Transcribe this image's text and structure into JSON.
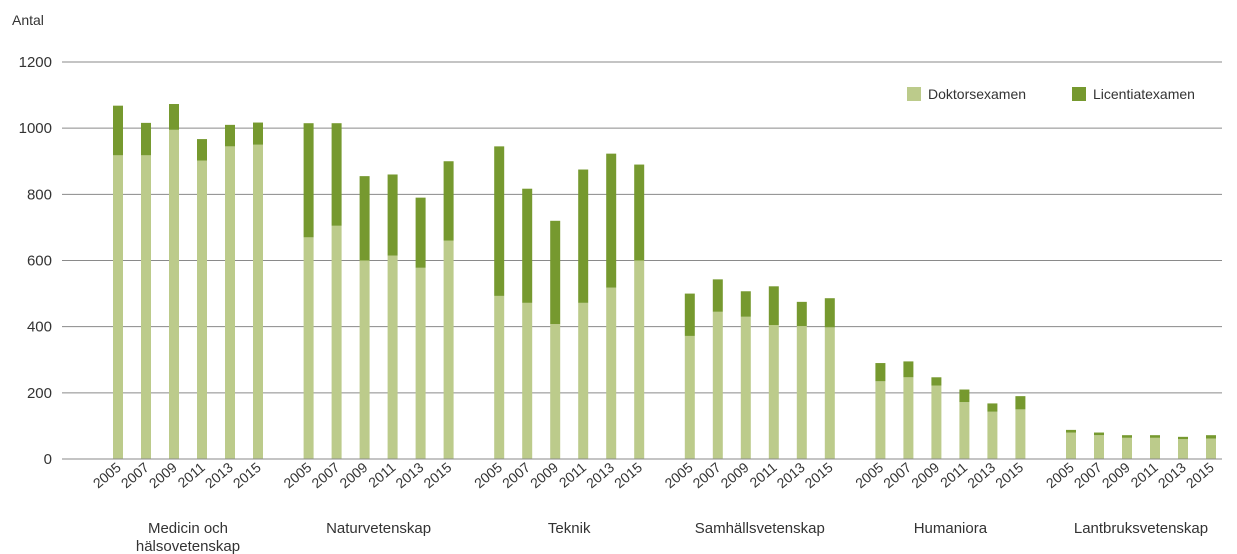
{
  "chart_data": {
    "type": "bar",
    "stacked": true,
    "ylabel": "Antal",
    "ylim": [
      0,
      1200
    ],
    "yticks": [
      0,
      200,
      400,
      600,
      800,
      1000,
      1200
    ],
    "grid": true,
    "legend_position": "top-right",
    "years": [
      "2005",
      "2007",
      "2009",
      "2011",
      "2013",
      "2015"
    ],
    "groups": [
      {
        "label_lines": [
          "Medicin och",
          "hälsovetenskap"
        ],
        "doktorsexamen": [
          918,
          918,
          995,
          902,
          945,
          950
        ],
        "licentiatexamen": [
          150,
          98,
          78,
          65,
          65,
          67
        ]
      },
      {
        "label_lines": [
          "Naturvetenskap"
        ],
        "doktorsexamen": [
          670,
          705,
          600,
          615,
          578,
          660
        ],
        "licentiatexamen": [
          345,
          310,
          255,
          245,
          212,
          240
        ]
      },
      {
        "label_lines": [
          "Teknik"
        ],
        "doktorsexamen": [
          493,
          472,
          408,
          472,
          518,
          600
        ],
        "licentiatexamen": [
          452,
          345,
          312,
          403,
          405,
          290
        ]
      },
      {
        "label_lines": [
          "Samhällsvetenskap"
        ],
        "doktorsexamen": [
          372,
          445,
          430,
          405,
          402,
          398
        ],
        "licentiatexamen": [
          128,
          98,
          77,
          117,
          73,
          88
        ]
      },
      {
        "label_lines": [
          "Humaniora"
        ],
        "doktorsexamen": [
          235,
          247,
          222,
          172,
          143,
          150
        ],
        "licentiatexamen": [
          55,
          48,
          25,
          38,
          25,
          40
        ]
      },
      {
        "label_lines": [
          "Lantbruksvetenskap"
        ],
        "doktorsexamen": [
          80,
          72,
          64,
          64,
          60,
          62
        ],
        "licentiatexamen": [
          8,
          8,
          8,
          8,
          7,
          10
        ]
      }
    ],
    "series": [
      {
        "name": "Doktorsexamen",
        "color": "#bccb8b"
      },
      {
        "name": "Licentiatexamen",
        "color": "#76992f"
      }
    ]
  }
}
